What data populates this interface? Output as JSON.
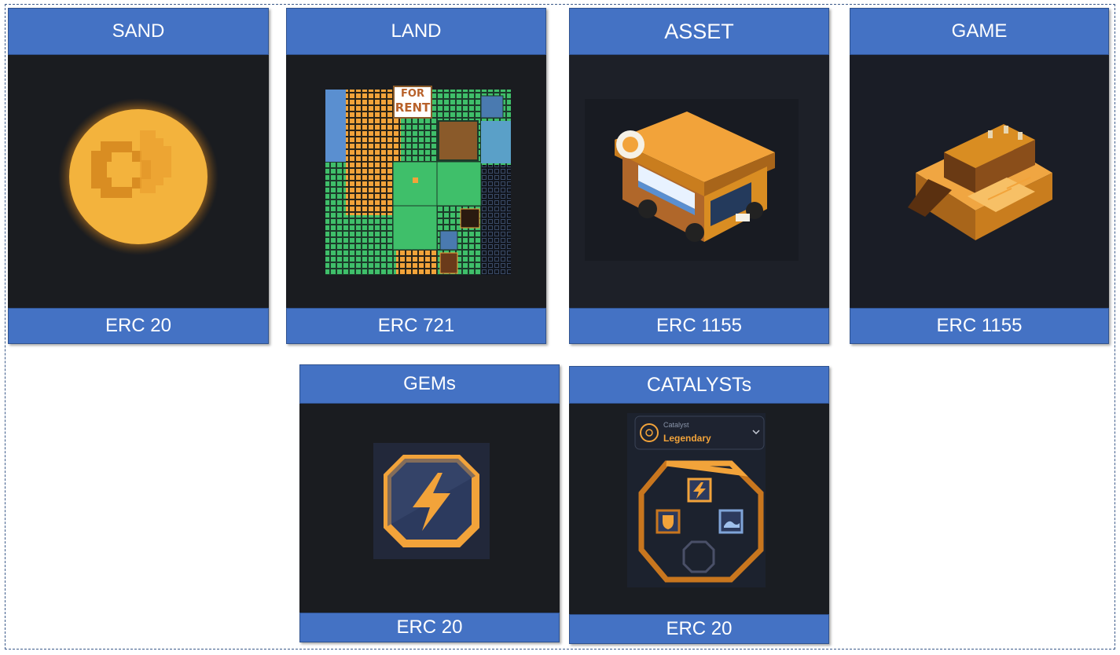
{
  "cards": [
    {
      "title": "SAND",
      "standard": "ERC 20",
      "image_icon": "sand-coin-icon"
    },
    {
      "title": "LAND",
      "standard": "ERC 721",
      "image_icon": "land-map-icon",
      "sign_line1": "FOR",
      "sign_line2": "RENT"
    },
    {
      "title": "ASSET",
      "standard": "ERC 1155",
      "image_icon": "food-truck-icon"
    },
    {
      "title": "GAME",
      "standard": "ERC 1155",
      "image_icon": "game-building-icon"
    },
    {
      "title": "GEMs",
      "standard": "ERC 20",
      "image_icon": "lightning-gem-icon"
    },
    {
      "title": "CATALYSTs",
      "standard": "ERC 20",
      "image_icon": "catalyst-socket-icon",
      "dropdown_label": "Catalyst",
      "dropdown_value": "Legendary"
    }
  ],
  "colors": {
    "header": "#4472c4",
    "panel": "#1a1c20",
    "accent_orange": "#f2a33a",
    "land_green": "#3fbf6a"
  }
}
